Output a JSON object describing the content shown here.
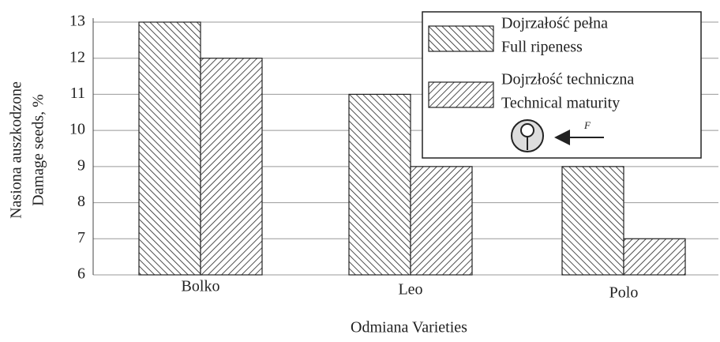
{
  "chart_data": {
    "type": "bar",
    "ylabel": [
      "Nasiona auszkodzone",
      "Damage seeds, %"
    ],
    "xlabel": "Odmiana  Varieties",
    "categories": [
      "Bolko",
      "Leo",
      "Polo"
    ],
    "series": [
      {
        "name": [
          "Dojrzałość pełna",
          "Full ripeness"
        ],
        "color": "#222222",
        "values": [
          13,
          11,
          9
        ]
      },
      {
        "name": [
          "Dojrzłość techniczna",
          "Technical maturity"
        ],
        "color": "#222222",
        "values": [
          12,
          9,
          7
        ]
      }
    ],
    "annotation": "F",
    "ylim": [
      6,
      13
    ],
    "yticks": [
      6,
      7,
      8,
      9,
      10,
      11,
      12,
      13
    ],
    "grid": true
  }
}
